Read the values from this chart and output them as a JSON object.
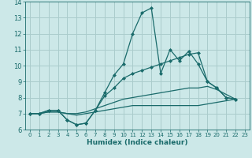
{
  "xlabel": "Humidex (Indice chaleur)",
  "bg_color": "#cce8e8",
  "grid_color": "#aacccc",
  "line_color": "#1a6b6b",
  "xlim": [
    -0.5,
    23.5
  ],
  "ylim": [
    6,
    14
  ],
  "xticks": [
    0,
    1,
    2,
    3,
    4,
    5,
    6,
    7,
    8,
    9,
    10,
    11,
    12,
    13,
    14,
    15,
    16,
    17,
    18,
    19,
    20,
    21,
    22,
    23
  ],
  "yticks": [
    6,
    7,
    8,
    9,
    10,
    11,
    12,
    13,
    14
  ],
  "series": [
    {
      "y": [
        7.0,
        7.0,
        7.2,
        7.2,
        6.6,
        6.3,
        6.4,
        7.2,
        8.3,
        9.4,
        10.1,
        12.0,
        13.3,
        13.6,
        9.5,
        11.0,
        10.3,
        10.9,
        10.1,
        9.0,
        8.6,
        8.0,
        7.9
      ],
      "marker": true
    },
    {
      "y": [
        7.0,
        7.0,
        7.2,
        7.2,
        6.6,
        6.3,
        6.4,
        7.2,
        8.1,
        8.6,
        9.2,
        9.5,
        9.7,
        9.9,
        10.1,
        10.3,
        10.5,
        10.7,
        10.8,
        9.0,
        8.6,
        8.0,
        7.9
      ],
      "marker": true
    },
    {
      "y": [
        7.0,
        7.0,
        7.1,
        7.1,
        7.0,
        7.0,
        7.1,
        7.3,
        7.5,
        7.7,
        7.9,
        8.0,
        8.1,
        8.2,
        8.3,
        8.4,
        8.5,
        8.6,
        8.6,
        8.7,
        8.5,
        8.2,
        7.9
      ],
      "marker": false
    },
    {
      "y": [
        7.0,
        7.0,
        7.1,
        7.1,
        7.0,
        6.9,
        7.0,
        7.1,
        7.2,
        7.3,
        7.4,
        7.5,
        7.5,
        7.5,
        7.5,
        7.5,
        7.5,
        7.5,
        7.5,
        7.6,
        7.7,
        7.8,
        7.9
      ],
      "marker": false
    }
  ]
}
